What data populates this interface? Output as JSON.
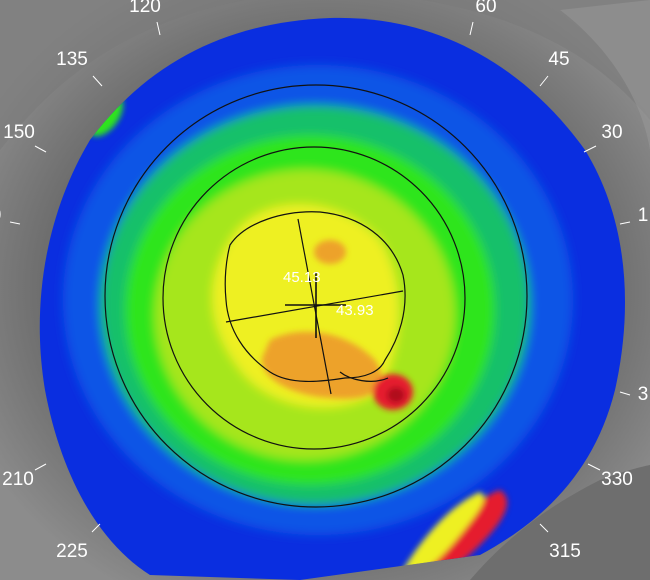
{
  "angle_ticks": [
    {
      "text": "120"
    },
    {
      "text": "60"
    },
    {
      "text": "135"
    },
    {
      "text": "45"
    },
    {
      "text": "150"
    },
    {
      "text": "30"
    },
    {
      "text": "1"
    },
    {
      "text": "3"
    },
    {
      "text": "210"
    },
    {
      "text": "330"
    },
    {
      "text": "225"
    },
    {
      "text": "315"
    },
    {
      "text": "0"
    }
  ],
  "keratometry": {
    "steep_k": "45.13",
    "flat_k": "43.93"
  },
  "colors": {
    "outside": "#1f2fd6",
    "blue": "#0a2ee0",
    "royal": "#0f55e6",
    "cyan_green": "#12c06a",
    "green": "#2ee51e",
    "yellow_green": "#a6e61a",
    "yellow": "#eef024",
    "orange": "#eda22a",
    "red": "#e51f2e",
    "dark_red": "#b00f1c"
  }
}
